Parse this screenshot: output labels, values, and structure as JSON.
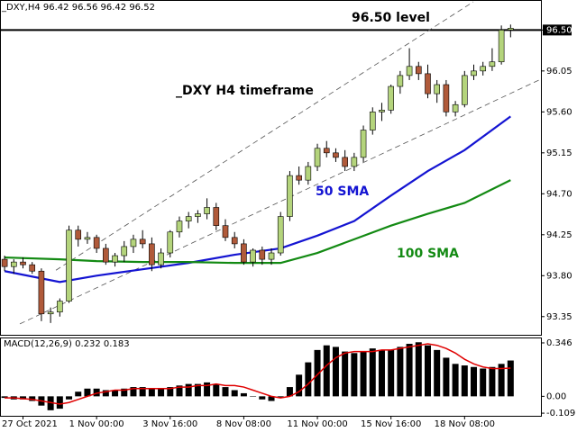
{
  "chart_data": {
    "type": "candlestick",
    "title": "_DXY,H4  96.42 96.56 96.42 96.52",
    "annotation": "_DXY H4 timeframe",
    "x": [
      0,
      1,
      2,
      3,
      4,
      5,
      6,
      7,
      8,
      9,
      10,
      11,
      12,
      13,
      14,
      15,
      16,
      17,
      18,
      19,
      20,
      21,
      22,
      23,
      24,
      25,
      26,
      27,
      28,
      29,
      30,
      31,
      32,
      33,
      34,
      35,
      36,
      37,
      38,
      39,
      40,
      41,
      42,
      43,
      44,
      45,
      46,
      47,
      48,
      49,
      50,
      51,
      52,
      53,
      54,
      55
    ],
    "open": [
      93.98,
      93.9,
      93.95,
      93.92,
      93.85,
      93.38,
      93.4,
      93.52,
      94.3,
      94.2,
      94.22,
      94.1,
      93.95,
      94.02,
      94.12,
      94.2,
      94.15,
      93.92,
      94.05,
      94.28,
      94.4,
      94.45,
      94.48,
      94.55,
      94.35,
      94.22,
      94.15,
      93.95,
      94.08,
      93.98,
      94.05,
      94.45,
      94.9,
      94.85,
      95.0,
      95.2,
      95.15,
      95.1,
      95.0,
      95.1,
      95.4,
      95.6,
      95.62,
      95.88,
      96.0,
      96.1,
      96.02,
      95.8,
      95.9,
      95.6,
      95.68,
      96.0,
      96.05,
      96.1,
      96.15,
      96.5
    ],
    "high": [
      94.02,
      93.98,
      94.0,
      93.95,
      93.88,
      93.45,
      93.55,
      94.35,
      94.35,
      94.28,
      94.25,
      94.15,
      94.05,
      94.18,
      94.25,
      94.3,
      94.22,
      94.1,
      94.3,
      94.45,
      94.5,
      94.52,
      94.65,
      94.6,
      94.42,
      94.28,
      94.2,
      94.1,
      94.12,
      94.1,
      94.5,
      94.95,
      95.0,
      95.05,
      95.25,
      95.28,
      95.2,
      95.18,
      95.15,
      95.45,
      95.65,
      95.7,
      95.9,
      96.05,
      96.3,
      96.15,
      96.12,
      95.95,
      95.95,
      95.72,
      96.05,
      96.12,
      96.15,
      96.3,
      96.55,
      96.56
    ],
    "low": [
      93.85,
      93.82,
      93.88,
      93.82,
      93.3,
      93.28,
      93.35,
      93.5,
      94.12,
      94.15,
      94.05,
      93.92,
      93.9,
      93.95,
      94.05,
      94.1,
      93.85,
      93.88,
      94.0,
      94.22,
      94.32,
      94.38,
      94.42,
      94.3,
      94.18,
      94.1,
      93.92,
      93.9,
      93.92,
      93.92,
      94.02,
      94.4,
      94.8,
      94.8,
      94.95,
      95.1,
      95.05,
      94.95,
      94.95,
      95.05,
      95.35,
      95.5,
      95.58,
      95.8,
      95.95,
      95.95,
      95.75,
      95.7,
      95.55,
      95.55,
      95.65,
      95.95,
      96.0,
      96.05,
      96.12,
      96.42
    ],
    "close": [
      93.9,
      93.95,
      93.92,
      93.85,
      93.38,
      93.4,
      93.52,
      94.3,
      94.2,
      94.22,
      94.1,
      93.95,
      94.02,
      94.12,
      94.2,
      94.15,
      93.92,
      94.05,
      94.28,
      94.4,
      94.45,
      94.48,
      94.55,
      94.35,
      94.22,
      94.15,
      93.95,
      94.08,
      93.98,
      94.05,
      94.45,
      94.9,
      94.85,
      95.0,
      95.2,
      95.15,
      95.1,
      95.0,
      95.1,
      95.4,
      95.6,
      95.62,
      95.88,
      96.0,
      96.1,
      96.02,
      95.8,
      95.9,
      95.6,
      95.68,
      96.0,
      96.05,
      96.1,
      96.15,
      96.5,
      96.52
    ],
    "up_color": "#b4d47c",
    "down_color": "#b05a3a",
    "xlim": [
      -0.5,
      58.3
    ],
    "xticks": [
      {
        "value": 2,
        "label": "27 Oct 2021"
      },
      {
        "value": 10,
        "label": "1 Nov 00:00"
      },
      {
        "value": 18,
        "label": "3 Nov 16:00"
      },
      {
        "value": 26,
        "label": "8 Nov 08:00"
      },
      {
        "value": 34,
        "label": "11 Nov 00:00"
      },
      {
        "value": 42,
        "label": "15 Nov 16:00"
      },
      {
        "value": 50,
        "label": "18 Nov 08:00"
      }
    ],
    "ylim": [
      93.15,
      96.83
    ],
    "yticks": [
      {
        "value": 96.5,
        "label": "96.50"
      },
      96.05,
      {
        "value": 95.6,
        "label": "95.60"
      },
      95.15,
      {
        "value": 94.7,
        "label": "94.70"
      },
      94.25,
      {
        "value": 93.8,
        "label": "93.80"
      },
      93.35
    ],
    "level": 96.5,
    "level_label": "96.50 level",
    "overlays": [
      {
        "name": "50 SMA",
        "color": "#1414d2",
        "x": [
          0,
          6,
          10,
          15,
          20,
          25,
          30,
          34,
          38,
          42,
          46,
          50,
          55
        ],
        "values": [
          93.85,
          93.73,
          93.8,
          93.87,
          93.94,
          94.03,
          94.1,
          94.24,
          94.4,
          94.68,
          94.95,
          95.18,
          95.55
        ]
      },
      {
        "name": "100 SMA",
        "color": "#138a13",
        "x": [
          0,
          6,
          10,
          15,
          20,
          25,
          30,
          34,
          38,
          42,
          46,
          50,
          55
        ],
        "values": [
          94.0,
          93.98,
          93.96,
          93.95,
          93.95,
          93.94,
          93.94,
          94.05,
          94.2,
          94.35,
          94.48,
          94.6,
          94.85
        ]
      }
    ],
    "channels": [
      {
        "x": [
          5.58,
          50.95
        ],
        "values": [
          93.86,
          96.81
        ]
      },
      {
        "x": [
          1.66,
          58.3
        ],
        "values": [
          93.27,
          95.96
        ]
      }
    ],
    "macd": {
      "type": "bar",
      "title": "MACD(12,26,9) 0.232 0.183",
      "color": "#000000",
      "values": [
        -0.01,
        -0.02,
        -0.02,
        -0.03,
        -0.06,
        -0.09,
        -0.08,
        -0.02,
        0.03,
        0.05,
        0.05,
        0.04,
        0.04,
        0.05,
        0.06,
        0.06,
        0.05,
        0.05,
        0.06,
        0.07,
        0.08,
        0.08,
        0.09,
        0.08,
        0.06,
        0.04,
        0.02,
        0.0,
        -0.02,
        -0.03,
        -0.01,
        0.06,
        0.14,
        0.22,
        0.3,
        0.33,
        0.32,
        0.29,
        0.28,
        0.29,
        0.31,
        0.3,
        0.3,
        0.32,
        0.34,
        0.35,
        0.33,
        0.3,
        0.25,
        0.21,
        0.2,
        0.19,
        0.18,
        0.19,
        0.21,
        0.232
      ],
      "signal": {
        "color": "#e00000",
        "values": [
          -0.01,
          -0.01,
          -0.015,
          -0.02,
          -0.03,
          -0.04,
          -0.05,
          -0.04,
          -0.02,
          0.0,
          0.02,
          0.03,
          0.04,
          0.04,
          0.05,
          0.05,
          0.05,
          0.05,
          0.05,
          0.06,
          0.06,
          0.07,
          0.07,
          0.08,
          0.07,
          0.07,
          0.06,
          0.04,
          0.02,
          0.0,
          -0.01,
          0.0,
          0.03,
          0.08,
          0.14,
          0.2,
          0.25,
          0.28,
          0.29,
          0.29,
          0.29,
          0.3,
          0.3,
          0.31,
          0.32,
          0.33,
          0.34,
          0.33,
          0.31,
          0.28,
          0.24,
          0.21,
          0.19,
          0.18,
          0.18,
          0.183
        ]
      },
      "ylim": [
        -0.126,
        0.375
      ],
      "yticks": [
        0.346,
        {
          "value": 0,
          "label": "0.00"
        },
        -0.109
      ]
    }
  }
}
